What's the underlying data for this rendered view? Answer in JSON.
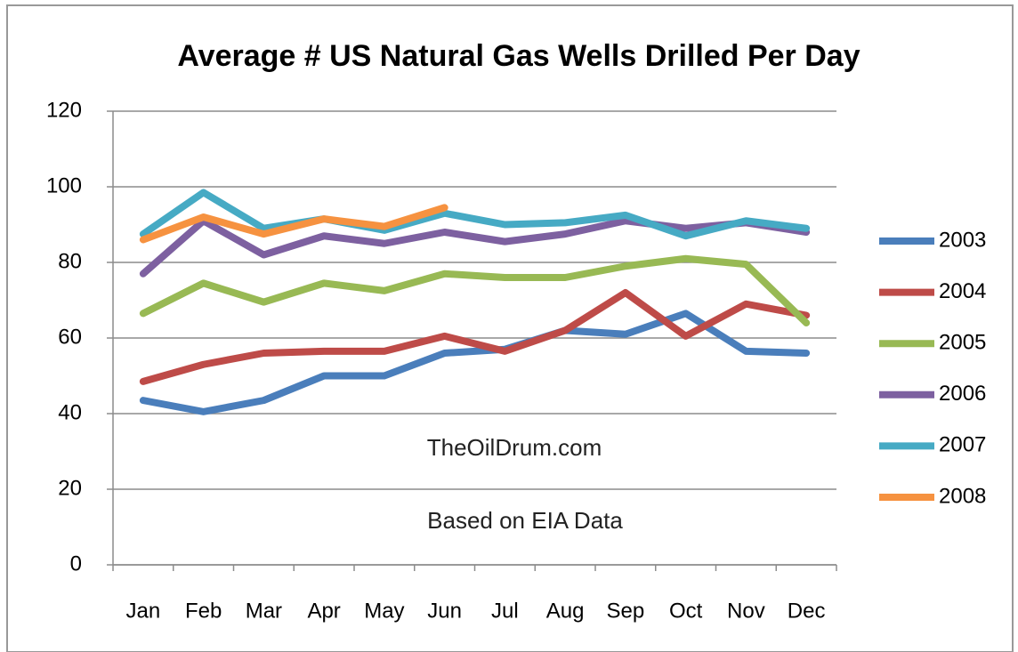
{
  "chart_data": {
    "type": "line",
    "title": "Average # US Natural Gas Wells Drilled Per Day",
    "categories": [
      "Jan",
      "Feb",
      "Mar",
      "Apr",
      "May",
      "Jun",
      "Jul",
      "Aug",
      "Sep",
      "Oct",
      "Nov",
      "Dec"
    ],
    "series": [
      {
        "name": "2003",
        "color": "#4a7ebb",
        "values": [
          43.5,
          40.5,
          43.5,
          50,
          50,
          56,
          57,
          62,
          61,
          66.5,
          56.5,
          56
        ]
      },
      {
        "name": "2004",
        "color": "#be4b48",
        "values": [
          48.5,
          53,
          56,
          56.5,
          56.5,
          60.5,
          56.5,
          62,
          72,
          60.5,
          69,
          66
        ]
      },
      {
        "name": "2005",
        "color": "#98b954",
        "values": [
          66.5,
          74.5,
          69.5,
          74.5,
          72.5,
          77,
          76,
          76,
          79,
          81,
          79.5,
          64
        ]
      },
      {
        "name": "2006",
        "color": "#7d60a0",
        "values": [
          77,
          91,
          82,
          87,
          85,
          88,
          85.5,
          87.5,
          91,
          89,
          90.5,
          88
        ]
      },
      {
        "name": "2007",
        "color": "#46aac4",
        "values": [
          87.5,
          98.5,
          89,
          91.5,
          88.5,
          93,
          90,
          90.5,
          92.5,
          87,
          91,
          89
        ]
      },
      {
        "name": "2008",
        "color": "#f69240",
        "values": [
          86,
          92,
          87.5,
          91.5,
          89.5,
          94.5,
          null,
          null,
          null,
          null,
          null,
          null
        ]
      }
    ],
    "annotations": [
      "TheOilDrum.com",
      "Based on EIA Data"
    ],
    "ylim": [
      0,
      120
    ],
    "yticks": [
      0,
      20,
      40,
      60,
      80,
      100,
      120
    ],
    "grid": true,
    "legend": "right"
  }
}
